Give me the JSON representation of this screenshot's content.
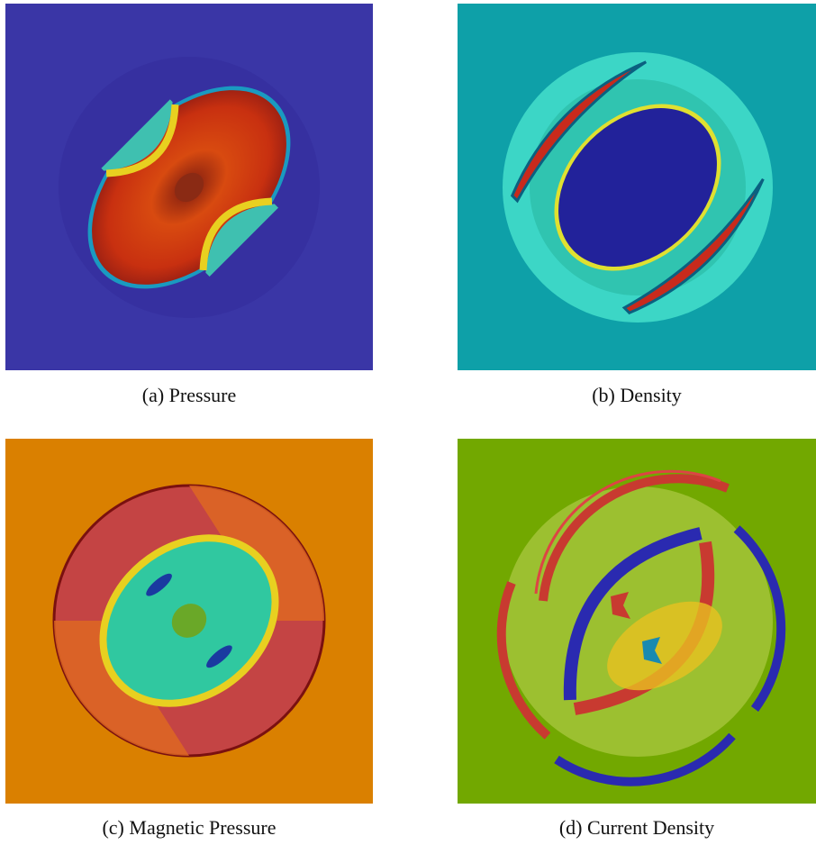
{
  "figure": {
    "panels": [
      {
        "caption": "(a) Pressure"
      },
      {
        "caption": "(b) Density"
      },
      {
        "caption": "(c) Magnetic Pressure"
      },
      {
        "caption": "(d) Current Density"
      }
    ]
  }
}
